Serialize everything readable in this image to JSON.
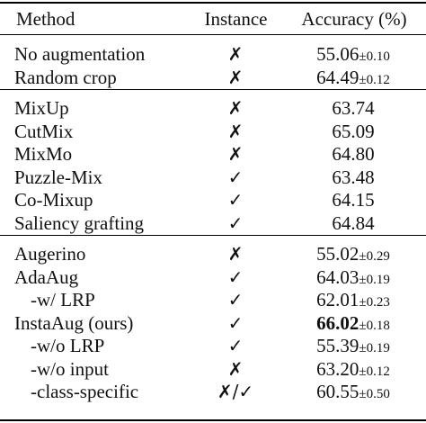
{
  "header": {
    "method": "Method",
    "instance": "Instance",
    "accuracy": "Accuracy (%)"
  },
  "groups": [
    {
      "rows": [
        {
          "method": "No augmentation",
          "instance": "✗",
          "acc": "55.06",
          "pm": "±0.10",
          "bold": false,
          "sub": false
        },
        {
          "method": "Random crop",
          "instance": "✗",
          "acc": "64.49",
          "pm": "±0.12",
          "bold": false,
          "sub": false
        }
      ]
    },
    {
      "rows": [
        {
          "method": "MixUp",
          "instance": "✗",
          "acc": "63.74",
          "pm": "",
          "bold": false,
          "sub": false
        },
        {
          "method": "CutMix",
          "instance": "✗",
          "acc": "65.09",
          "pm": "",
          "bold": false,
          "sub": false
        },
        {
          "method": "MixMo",
          "instance": "✗",
          "acc": "64.80",
          "pm": "",
          "bold": false,
          "sub": false
        },
        {
          "method": "Puzzle-Mix",
          "instance": "✓",
          "acc": "63.48",
          "pm": "",
          "bold": false,
          "sub": false
        },
        {
          "method": "Co-Mixup",
          "instance": "✓",
          "acc": "64.15",
          "pm": "",
          "bold": false,
          "sub": false
        },
        {
          "method": "Saliency grafting",
          "instance": "✓",
          "acc": "64.84",
          "pm": "",
          "bold": false,
          "sub": false
        }
      ]
    },
    {
      "rows": [
        {
          "method": "Augerino",
          "instance": "✗",
          "acc": "55.02",
          "pm": "±0.29",
          "bold": false,
          "sub": false
        },
        {
          "method": "AdaAug",
          "instance": "✓",
          "acc": "64.03",
          "pm": "±0.19",
          "bold": false,
          "sub": false
        },
        {
          "method": "-w/ LRP",
          "instance": "✓",
          "acc": "62.01",
          "pm": "±0.23",
          "bold": false,
          "sub": true
        },
        {
          "method": "InstaAug (ours)",
          "instance": "✓",
          "acc": "66.02",
          "pm": "±0.18",
          "bold": true,
          "sub": false
        },
        {
          "method": "-w/o LRP",
          "instance": "✓",
          "acc": "55.39",
          "pm": "±0.19",
          "bold": false,
          "sub": true
        },
        {
          "method": "-w/o input",
          "instance": "✗",
          "acc": "63.20",
          "pm": "±0.12",
          "bold": false,
          "sub": true
        },
        {
          "method": "-class-specific",
          "instance": "✗/✓",
          "acc": "60.55",
          "pm": "±0.50",
          "bold": false,
          "sub": true
        }
      ]
    }
  ]
}
